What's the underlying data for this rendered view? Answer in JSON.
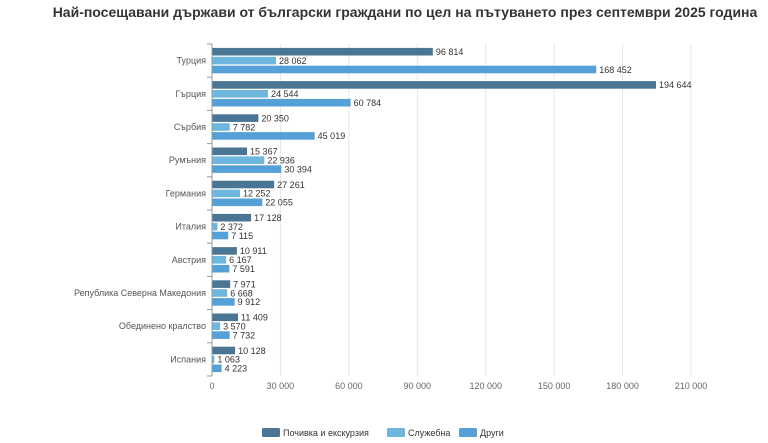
{
  "chart_data": {
    "type": "bar",
    "orientation": "horizontal",
    "title": "Най-посещавани държави от български граждани по цел на пътуването през септември 2025 година",
    "xlabel": "",
    "ylabel": "",
    "xlim": [
      0,
      210000
    ],
    "grid": true,
    "legend_position": "bottom",
    "x_ticks": [
      0,
      30000,
      60000,
      90000,
      120000,
      150000,
      180000,
      210000
    ],
    "x_tick_labels": [
      "0",
      "30 000",
      "60 000",
      "90 000",
      "120 000",
      "150 000",
      "180 000",
      "210 000"
    ],
    "categories": [
      "Турция",
      "Гърция",
      "Сърбия",
      "Румъния",
      "Германия",
      "Италия",
      "Австрия",
      "Република Северна Македония",
      "Обединено кралство",
      "Испания"
    ],
    "series": [
      {
        "name": "Почивка и екскурзия",
        "color": "#4a7594",
        "values": [
          96814,
          194644,
          20350,
          15367,
          27261,
          17128,
          10911,
          7971,
          11409,
          10128
        ],
        "labels": [
          "96 814",
          "194 644",
          "20 350",
          "15 367",
          "27 261",
          "17 128",
          "10 911",
          "7 971",
          "11 409",
          "10 128"
        ]
      },
      {
        "name": "Служебна",
        "color": "#6fb6de",
        "values": [
          28062,
          24544,
          7782,
          22936,
          12252,
          2372,
          6167,
          6668,
          3570,
          1063
        ],
        "labels": [
          "28 062",
          "24 544",
          "7 782",
          "22 936",
          "12 252",
          "2 372",
          "6 167",
          "6 668",
          "3 570",
          "1 063"
        ]
      },
      {
        "name": "Други",
        "color": "#55a0d6",
        "values": [
          168452,
          60784,
          45019,
          30394,
          22055,
          7115,
          7591,
          9912,
          7732,
          4223
        ],
        "labels": [
          "168 452",
          "60 784",
          "45 019",
          "30 394",
          "22 055",
          "7 115",
          "7 591",
          "9 912",
          "7 732",
          "4 223"
        ]
      }
    ]
  }
}
